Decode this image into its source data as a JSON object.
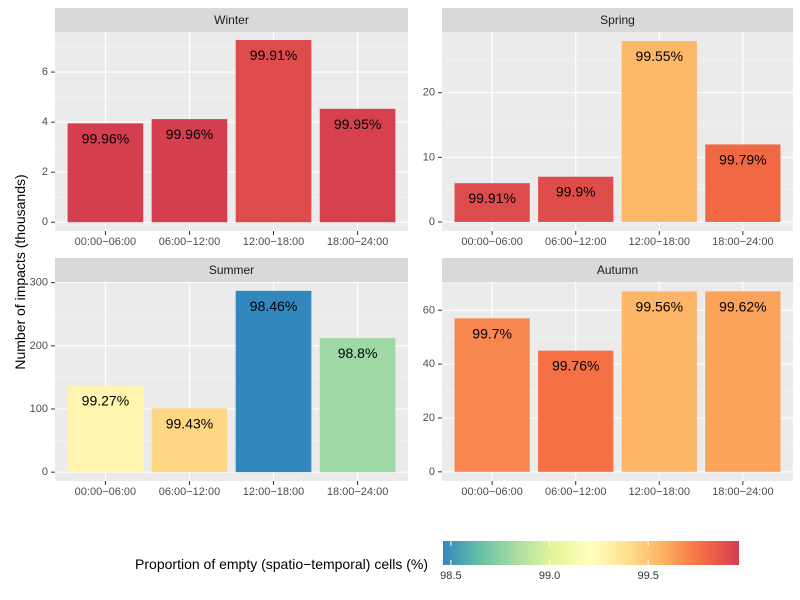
{
  "chart_data": {
    "type": "bar",
    "ylabel": "Number of impacts (thousands)",
    "xlabel": "",
    "categories": [
      "00:00−06:00",
      "06:00−12:00",
      "12:00−18:00",
      "18:00−24:00"
    ],
    "facets": [
      {
        "name": "Winter",
        "values": [
          3.95,
          4.12,
          7.28,
          4.53
        ],
        "labels": [
          "99.96%",
          "99.96%",
          "99.91%",
          "99.95%"
        ],
        "fill_values": [
          99.96,
          99.96,
          99.91,
          99.95
        ],
        "ylim": [
          -0.35,
          7.6
        ],
        "yticks": [
          0,
          2,
          4,
          6
        ]
      },
      {
        "name": "Spring",
        "values": [
          6.0,
          7.0,
          28.0,
          12.0
        ],
        "labels": [
          "99.91%",
          "99.9%",
          "99.55%",
          "99.79%"
        ],
        "fill_values": [
          99.91,
          99.9,
          99.55,
          99.79
        ],
        "ylim": [
          -1.4,
          29.4
        ],
        "yticks": [
          0,
          10,
          20
        ]
      },
      {
        "name": "Summer",
        "values": [
          137,
          101,
          287,
          212
        ],
        "labels": [
          "99.27%",
          "99.43%",
          "98.46%",
          "98.8%"
        ],
        "fill_values": [
          99.27,
          99.43,
          98.46,
          98.8
        ],
        "ylim": [
          -14,
          301
        ],
        "yticks": [
          0,
          100,
          200,
          300
        ]
      },
      {
        "name": "Autumn",
        "values": [
          57,
          45,
          67,
          67
        ],
        "labels": [
          "99.7%",
          "99.76%",
          "99.56%",
          "99.62%"
        ],
        "fill_values": [
          99.7,
          99.76,
          99.56,
          99.62
        ],
        "ylim": [
          -3.4,
          70.5
        ],
        "yticks": [
          0,
          20,
          40,
          60
        ]
      }
    ],
    "legend": {
      "title": "Proportion of empty (spatio−temporal) cells (%)",
      "placement": "bottom",
      "range": [
        98.46,
        99.96
      ],
      "ticks": [
        98.5,
        99.0,
        99.5
      ],
      "tick_labels": [
        "98.5",
        "99.0",
        "99.5"
      ],
      "colors": [
        "#3288bd",
        "#66c2a5",
        "#abdda4",
        "#e6f598",
        "#ffffbf",
        "#fee08b",
        "#fdae61",
        "#f46d43",
        "#d53e4f"
      ]
    }
  }
}
